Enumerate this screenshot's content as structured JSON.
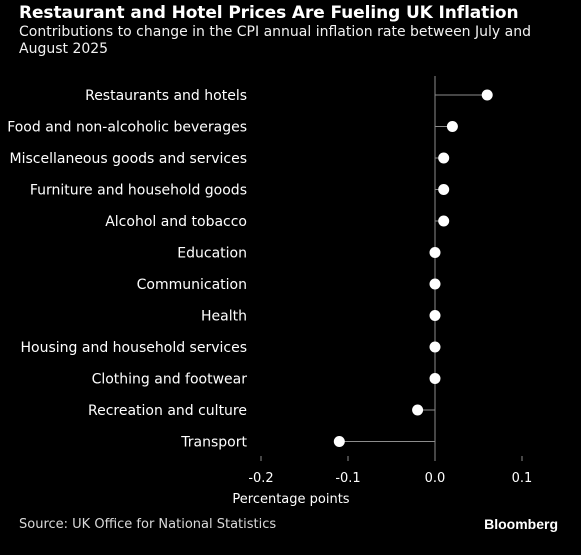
{
  "header": {
    "title": "Restaurant and Hotel Prices Are Fueling UK Inflation",
    "subtitle": "Contributions to change in the CPI annual inflation rate between July and August 2025"
  },
  "footer": {
    "source": "Source: UK Office for National Statistics",
    "brand": "Bloomberg"
  },
  "colors": {
    "background": "#000000",
    "text": "#ffffff",
    "axis": "#8c8c8c",
    "marker": "#ffffff"
  },
  "chart_data": {
    "type": "scatter",
    "orientation": "horizontal-dot-plot",
    "title": "Restaurant and Hotel Prices Are Fueling UK Inflation",
    "subtitle": "Contributions to change in the CPI annual inflation rate between July and August 2025",
    "xlabel": "Percentage points",
    "ylabel": "",
    "xlim": [
      -0.2,
      0.1
    ],
    "xticks": [
      -0.2,
      -0.1,
      0.0,
      0.1
    ],
    "xtick_labels": [
      "-0.2",
      "-0.1",
      "0.0",
      "0.1"
    ],
    "grid": false,
    "categories": [
      "Restaurants and hotels",
      "Food and non-alcoholic beverages",
      "Miscellaneous goods and services",
      "Furniture and household goods",
      "Alcohol and tobacco",
      "Education",
      "Communication",
      "Health",
      "Housing and household services",
      "Clothing and footwear",
      "Recreation and culture",
      "Transport"
    ],
    "values": [
      0.06,
      0.02,
      0.01,
      0.01,
      0.01,
      0.0,
      0.0,
      0.0,
      0.0,
      0.0,
      -0.02,
      -0.11
    ]
  }
}
